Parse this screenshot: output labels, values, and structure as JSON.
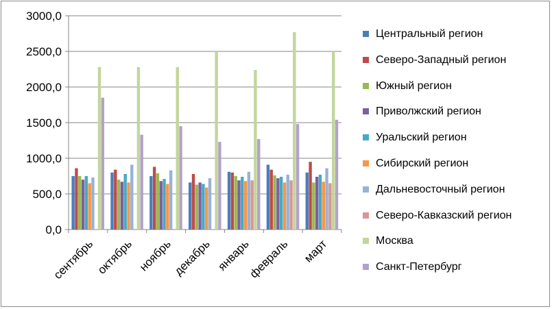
{
  "chart_data": {
    "type": "bar",
    "categories": [
      "сентябрь",
      "октябрь",
      "ноябрь",
      "декабрь",
      "январь",
      "февраль",
      "март"
    ],
    "ylim": [
      0,
      3000
    ],
    "yticks": [
      "0,0",
      "500,0",
      "1000,0",
      "1500,0",
      "2000,0",
      "2500,0",
      "3000,0"
    ],
    "grid": true,
    "legend_position": "right",
    "series": [
      {
        "name": "Центральный регион",
        "color": "#4a7ebb",
        "values": [
          750,
          800,
          750,
          660,
          810,
          910,
          800
        ]
      },
      {
        "name": "Северо-Западный регион",
        "color": "#be4b48",
        "values": [
          860,
          840,
          880,
          780,
          800,
          840,
          950
        ]
      },
      {
        "name": "Южный регион",
        "color": "#98b954",
        "values": [
          750,
          700,
          790,
          630,
          750,
          760,
          660
        ]
      },
      {
        "name": "Приволжский регион",
        "color": "#7d60a0",
        "values": [
          700,
          670,
          680,
          660,
          690,
          720,
          740
        ]
      },
      {
        "name": "Уральский регион",
        "color": "#46aac4",
        "values": [
          750,
          780,
          710,
          640,
          740,
          740,
          770
        ]
      },
      {
        "name": "Сибирский регион",
        "color": "#f79646",
        "values": [
          650,
          660,
          640,
          590,
          680,
          660,
          670
        ]
      },
      {
        "name": "Дальневосточный регион",
        "color": "#95b3d7",
        "values": [
          730,
          910,
          830,
          720,
          810,
          770,
          860
        ]
      },
      {
        "name": "Северо-Кавказский регион",
        "color": "#d99694",
        "values": [
          0,
          0,
          0,
          0,
          690,
          690,
          650
        ]
      },
      {
        "name": "Москва",
        "color": "#c3d69b",
        "values": [
          2280,
          2280,
          2280,
          2500,
          2240,
          2770,
          2500
        ]
      },
      {
        "name": "Санкт-Петербург",
        "color": "#b3a2c7",
        "values": [
          1850,
          1330,
          1450,
          1230,
          1270,
          1480,
          1540
        ]
      }
    ]
  }
}
